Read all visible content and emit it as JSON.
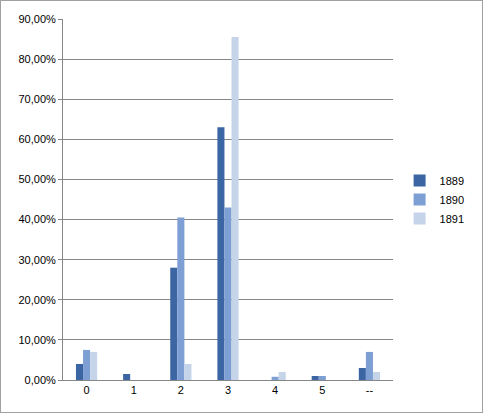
{
  "chart_data": {
    "type": "bar",
    "categories": [
      "0",
      "1",
      "2",
      "3",
      "4",
      "5",
      "--"
    ],
    "series": [
      {
        "name": "1889",
        "color": "#3c65a3",
        "values": [
          4,
          1.5,
          28,
          63,
          0,
          1,
          3
        ]
      },
      {
        "name": "1890",
        "color": "#7d9fd3",
        "values": [
          7.5,
          0,
          40.5,
          43,
          0.8,
          1,
          7
        ]
      },
      {
        "name": "1891",
        "color": "#c6d4ea",
        "values": [
          7,
          0,
          4,
          85.5,
          2,
          0,
          2
        ]
      }
    ],
    "ylim": [
      0,
      90
    ],
    "yticks": [
      {
        "value": 0,
        "label": "0,00%"
      },
      {
        "value": 10,
        "label": "10,00%"
      },
      {
        "value": 20,
        "label": "20,00%"
      },
      {
        "value": 30,
        "label": "30,00%"
      },
      {
        "value": 40,
        "label": "40,00%"
      },
      {
        "value": 50,
        "label": "50,00%"
      },
      {
        "value": 60,
        "label": "60,00%"
      },
      {
        "value": 70,
        "label": "70,00%"
      },
      {
        "value": 80,
        "label": "80,00%"
      },
      {
        "value": 90,
        "label": "90,00%"
      }
    ],
    "grid": true,
    "legend": "right"
  }
}
